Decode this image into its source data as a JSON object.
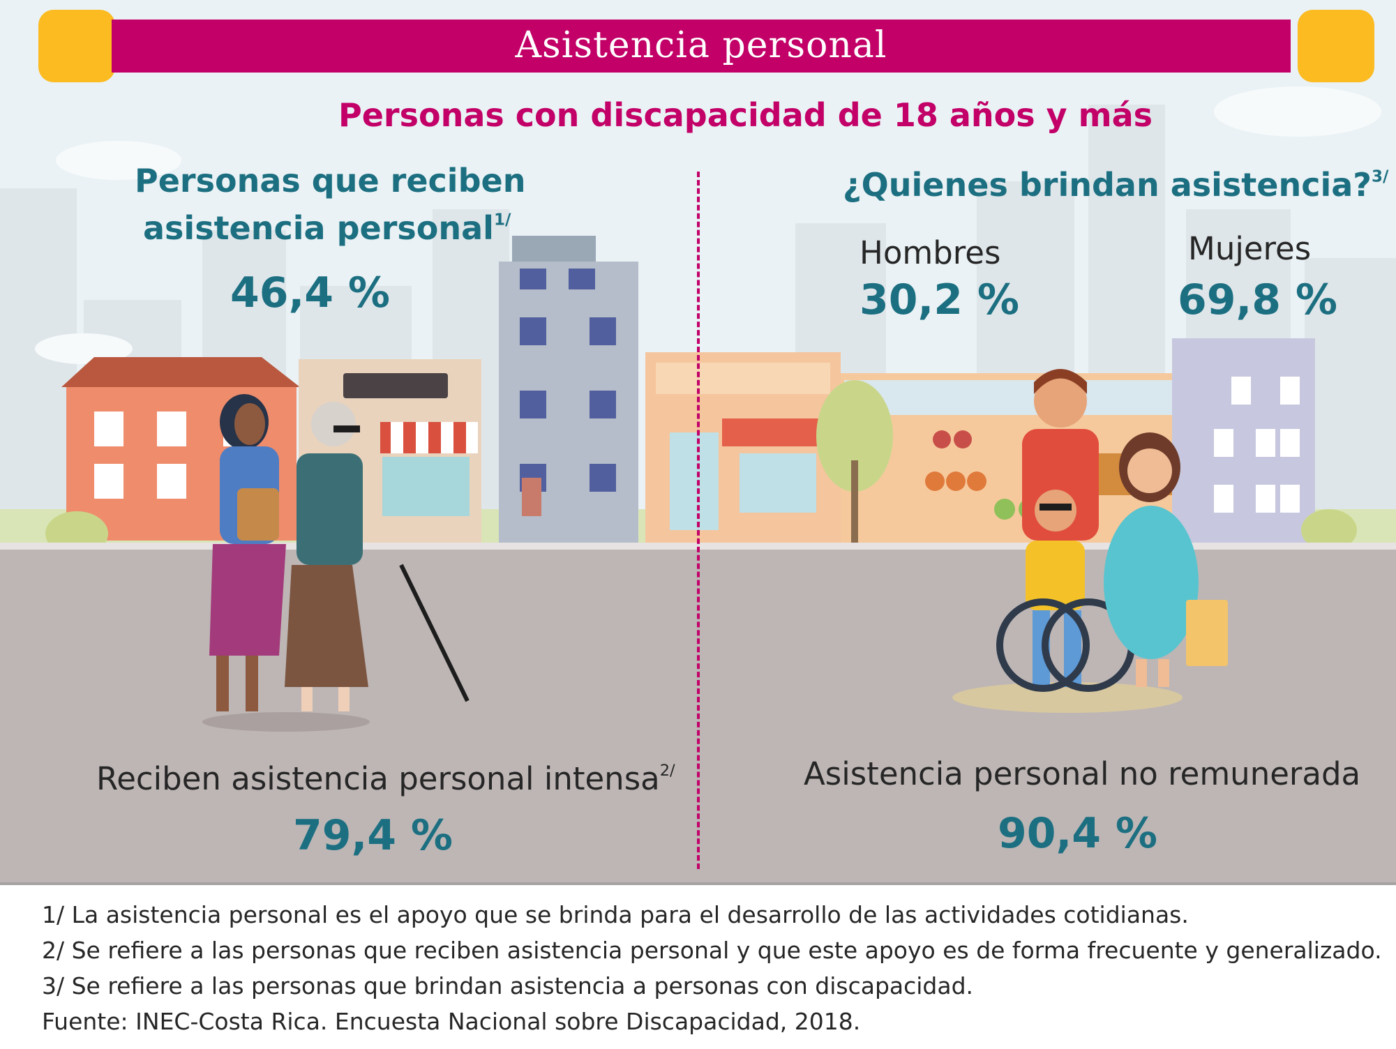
{
  "header": {
    "title": "Asistencia personal"
  },
  "subtitle": "Personas con discapacidad de 18 años y más",
  "left_panel": {
    "heading_line1": "Personas que reciben",
    "heading_line2": "asistencia personal",
    "heading_note_mark": "1/",
    "value": "46,4 %",
    "intense_label": "Reciben asistencia personal intensa",
    "intense_note_mark": "2/",
    "intense_value": "79,4 %"
  },
  "right_panel": {
    "heading": "¿Quienes brindan asistencia?",
    "heading_note_mark": "3/",
    "men_label": "Hombres",
    "men_value": "30,2 %",
    "women_label": "Mujeres",
    "women_value": "69,8 %",
    "unpaid_label": "Asistencia personal no remunerada",
    "unpaid_value": "90,4 %"
  },
  "notes": [
    "1/ La asistencia personal es el apoyo que se brinda para el desarrollo de las actividades cotidianas.",
    "2/ Se refiere a las personas que reciben asistencia personal y que este apoyo es de forma frecuente y generalizado.",
    "3/ Se refiere a las personas que brindan asistencia a personas con discapacidad.",
    "Fuente: INEC-Costa Rica. Encuesta Nacional sobre Discapacidad, 2018."
  ],
  "colors": {
    "brand_magenta": "#c20068",
    "accent_yellow": "#fbbb21",
    "value_teal": "#1c6f81",
    "street_gray": "#bdb6b5"
  }
}
